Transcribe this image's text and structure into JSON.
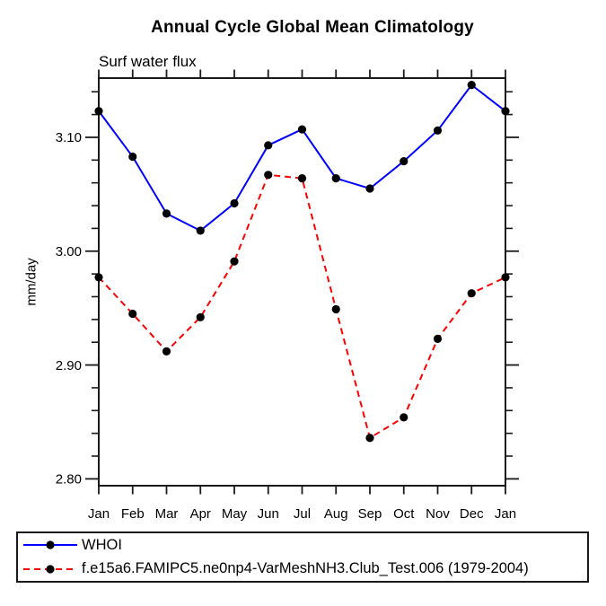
{
  "page": {
    "background": "#ffffff"
  },
  "colors": {
    "axis": "#1a1a1a",
    "text": "#000000",
    "marker": "#000000",
    "series_blue": "#0000ff",
    "series_red": "#ff0000"
  },
  "chart_data": {
    "type": "line",
    "title": "Annual Cycle Global Mean Climatology",
    "subtitle": "Surf water flux",
    "ylabel": "mm/day",
    "xlabel": "",
    "categories": [
      "Jan",
      "Feb",
      "Mar",
      "Apr",
      "May",
      "Jun",
      "Jul",
      "Aug",
      "Sep",
      "Oct",
      "Nov",
      "Dec",
      "Jan"
    ],
    "ylim": [
      2.794,
      3.152
    ],
    "y_major_ticks": [
      2.8,
      2.9,
      3.0,
      3.1
    ],
    "y_tick_labels": [
      "2.80",
      "2.90",
      "3.00",
      "3.10"
    ],
    "y_minor_step": 0.02,
    "grid": false,
    "legend_position": "bottom-left-box",
    "series": [
      {
        "name": "WHOI",
        "color": "#0000ff",
        "style": "solid",
        "marker": "filled-circle",
        "marker_color": "#000000",
        "values": [
          3.123,
          3.083,
          3.033,
          3.018,
          3.042,
          3.093,
          3.107,
          3.064,
          3.055,
          3.079,
          3.106,
          3.146,
          3.123
        ]
      },
      {
        "name": "f.e15a6.FAMIPC5.ne0np4-VarMeshNH3.Club_Test.006 (1979-2004)",
        "color": "#ff0000",
        "style": "dashed",
        "marker": "filled-circle",
        "marker_color": "#000000",
        "values": [
          2.977,
          2.945,
          2.912,
          2.942,
          2.991,
          3.067,
          3.064,
          2.949,
          2.836,
          2.854,
          2.923,
          2.963,
          2.977
        ]
      }
    ]
  }
}
